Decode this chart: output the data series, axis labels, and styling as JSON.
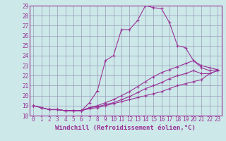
{
  "xlabel": "Windchill (Refroidissement éolien,°C)",
  "xlim": [
    -0.5,
    23.5
  ],
  "ylim": [
    18,
    29
  ],
  "yticks": [
    18,
    19,
    20,
    21,
    22,
    23,
    24,
    25,
    26,
    27,
    28,
    29
  ],
  "xticks": [
    0,
    1,
    2,
    3,
    4,
    5,
    6,
    7,
    8,
    9,
    10,
    11,
    12,
    13,
    14,
    15,
    16,
    17,
    18,
    19,
    20,
    21,
    22,
    23
  ],
  "background_color": "#cce8e8",
  "grid_color": "#9999bb",
  "line_color": "#993399",
  "lines": [
    [
      19.0,
      18.8,
      18.6,
      18.6,
      18.5,
      18.5,
      18.5,
      19.3,
      20.5,
      23.5,
      24.0,
      26.6,
      26.6,
      27.5,
      29.0,
      28.8,
      28.7,
      27.3,
      25.0,
      24.8,
      23.5,
      22.8,
      22.5,
      22.6
    ],
    [
      19.0,
      18.8,
      18.6,
      18.6,
      18.5,
      18.5,
      18.5,
      18.8,
      19.0,
      19.3,
      19.6,
      20.0,
      20.4,
      20.9,
      21.4,
      21.9,
      22.3,
      22.6,
      22.9,
      23.2,
      23.5,
      23.0,
      22.8,
      22.6
    ],
    [
      19.0,
      18.8,
      18.6,
      18.6,
      18.5,
      18.5,
      18.5,
      18.8,
      18.9,
      19.1,
      19.3,
      19.6,
      19.9,
      20.3,
      20.7,
      21.0,
      21.3,
      21.7,
      22.0,
      22.2,
      22.5,
      22.2,
      22.2,
      22.5
    ],
    [
      19.0,
      18.8,
      18.6,
      18.6,
      18.5,
      18.5,
      18.5,
      18.7,
      18.8,
      19.0,
      19.2,
      19.4,
      19.6,
      19.8,
      20.0,
      20.2,
      20.4,
      20.7,
      21.0,
      21.2,
      21.4,
      21.6,
      22.2,
      22.5
    ]
  ],
  "label_fontsize": 6.5,
  "tick_fontsize": 5.5
}
